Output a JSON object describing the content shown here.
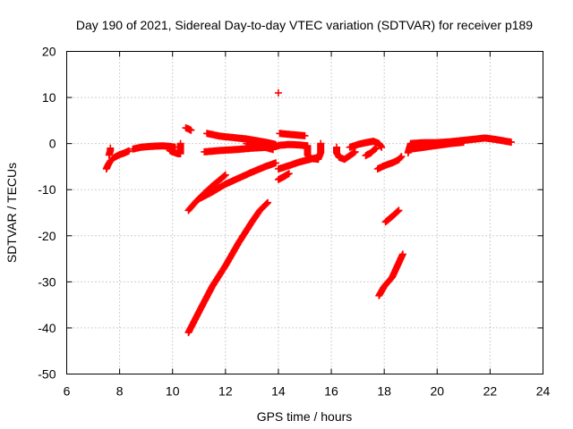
{
  "chart_data": {
    "type": "scatter",
    "title": "Day 190 of 2021, Sidereal Day-to-day VTEC variation (SDTVAR) for receiver p189",
    "xlabel": "GPS time / hours",
    "ylabel": "SDTVAR / TECUs",
    "xlim": [
      6,
      24
    ],
    "ylim": [
      -50,
      20
    ],
    "xticks": [
      "6",
      "8",
      "10",
      "12",
      "14",
      "16",
      "18",
      "20",
      "22",
      "24"
    ],
    "yticks": [
      "20",
      "10",
      "0",
      "-10",
      "-20",
      "-30",
      "-40",
      "-50"
    ],
    "grid": true,
    "marker": "plus",
    "series_color": "#ff0000",
    "series": [
      {
        "name": "track-1",
        "points": [
          [
            7.5,
            -5.5
          ],
          [
            7.55,
            -4.8
          ],
          [
            7.65,
            -3.8
          ],
          [
            7.8,
            -3.0
          ],
          [
            8.0,
            -2.4
          ],
          [
            8.2,
            -2.0
          ],
          [
            8.35,
            -1.6
          ]
        ]
      },
      {
        "name": "track-2",
        "points": [
          [
            7.6,
            -2.5
          ],
          [
            7.65,
            -1.5
          ],
          [
            7.65,
            -1.0
          ]
        ]
      },
      {
        "name": "track-3",
        "points": [
          [
            8.5,
            -1.2
          ],
          [
            8.8,
            -0.8
          ],
          [
            9.2,
            -0.6
          ],
          [
            9.6,
            -0.5
          ],
          [
            9.9,
            -0.6
          ],
          [
            10.1,
            -0.8
          ]
        ]
      },
      {
        "name": "track-4",
        "points": [
          [
            9.9,
            -1.5
          ],
          [
            10.0,
            -1.8
          ],
          [
            10.1,
            -2.0
          ],
          [
            10.2,
            -2.2
          ],
          [
            10.3,
            -2.2
          ],
          [
            10.3,
            -1.0
          ],
          [
            10.3,
            0.0
          ]
        ]
      },
      {
        "name": "track-5",
        "points": [
          [
            10.5,
            3.4
          ],
          [
            10.6,
            3.2
          ],
          [
            10.7,
            2.9
          ]
        ]
      },
      {
        "name": "track-6",
        "points": [
          [
            10.6,
            -14.5
          ],
          [
            10.9,
            -12.5
          ],
          [
            11.2,
            -10.8
          ],
          [
            11.5,
            -9.2
          ],
          [
            11.8,
            -7.8
          ],
          [
            12.0,
            -6.8
          ]
        ]
      },
      {
        "name": "track-7",
        "points": [
          [
            11.0,
            -12.0
          ],
          [
            11.5,
            -10.5
          ],
          [
            12.0,
            -8.8
          ],
          [
            12.5,
            -7.5
          ],
          [
            13.0,
            -6.2
          ],
          [
            13.5,
            -5.0
          ],
          [
            13.9,
            -4.2
          ]
        ]
      },
      {
        "name": "track-8",
        "points": [
          [
            10.6,
            -41.0
          ],
          [
            11.0,
            -36.5
          ],
          [
            11.5,
            -31.0
          ],
          [
            12.0,
            -26.5
          ],
          [
            12.5,
            -21.5
          ],
          [
            13.0,
            -17.0
          ],
          [
            13.3,
            -14.5
          ],
          [
            13.6,
            -12.8
          ]
        ]
      },
      {
        "name": "track-9",
        "points": [
          [
            11.3,
            2.2
          ],
          [
            11.8,
            1.6
          ],
          [
            12.3,
            1.3
          ],
          [
            12.8,
            1.0
          ],
          [
            13.2,
            0.6
          ],
          [
            13.6,
            0.2
          ],
          [
            13.9,
            -0.2
          ]
        ]
      },
      {
        "name": "track-10",
        "points": [
          [
            11.2,
            -1.8
          ],
          [
            11.8,
            -1.5
          ],
          [
            12.4,
            -1.3
          ],
          [
            13.0,
            -1.0
          ],
          [
            13.6,
            -0.8
          ],
          [
            14.0,
            -0.5
          ]
        ]
      },
      {
        "name": "track-11",
        "points": [
          [
            12.8,
            0.0
          ],
          [
            13.2,
            -0.4
          ],
          [
            13.5,
            -0.8
          ],
          [
            13.8,
            -1.3
          ]
        ]
      },
      {
        "name": "track-12",
        "points": [
          [
            14.0,
            11.0
          ]
        ]
      },
      {
        "name": "track-13",
        "points": [
          [
            14.05,
            2.2
          ],
          [
            14.4,
            2.0
          ],
          [
            14.8,
            1.8
          ],
          [
            15.0,
            1.7
          ]
        ]
      },
      {
        "name": "track-14",
        "points": [
          [
            14.0,
            -0.4
          ],
          [
            14.4,
            -0.2
          ],
          [
            14.8,
            -0.3
          ],
          [
            15.1,
            -0.5
          ]
        ]
      },
      {
        "name": "track-15",
        "points": [
          [
            14.0,
            -5.5
          ],
          [
            14.4,
            -4.8
          ],
          [
            14.8,
            -4.0
          ],
          [
            15.2,
            -3.4
          ],
          [
            15.5,
            -3.0
          ]
        ]
      },
      {
        "name": "track-16",
        "points": [
          [
            14.0,
            -7.8
          ],
          [
            14.2,
            -7.2
          ],
          [
            14.4,
            -6.5
          ]
        ]
      },
      {
        "name": "track-17",
        "points": [
          [
            15.1,
            -0.5
          ],
          [
            15.1,
            -1.5
          ],
          [
            15.1,
            -2.5
          ],
          [
            15.2,
            -3.2
          ],
          [
            15.5,
            -3.4
          ],
          [
            15.6,
            -2.0
          ],
          [
            15.6,
            -0.5
          ],
          [
            15.6,
            0.0
          ]
        ]
      },
      {
        "name": "track-18",
        "points": [
          [
            16.2,
            -0.8
          ],
          [
            16.2,
            -2.0
          ],
          [
            16.3,
            -3.0
          ],
          [
            16.5,
            -3.4
          ],
          [
            16.7,
            -2.6
          ],
          [
            16.9,
            -1.8
          ]
        ]
      },
      {
        "name": "track-19",
        "points": [
          [
            16.7,
            -0.8
          ],
          [
            17.0,
            -0.2
          ],
          [
            17.3,
            0.2
          ],
          [
            17.6,
            0.5
          ],
          [
            17.8,
            0.0
          ],
          [
            17.9,
            -0.8
          ]
        ]
      },
      {
        "name": "track-20",
        "points": [
          [
            17.3,
            -2.6
          ],
          [
            17.5,
            -2.0
          ],
          [
            17.6,
            -1.4
          ],
          [
            17.7,
            -1.0
          ]
        ]
      },
      {
        "name": "track-21",
        "points": [
          [
            17.75,
            -5.5
          ],
          [
            18.0,
            -4.8
          ],
          [
            18.3,
            -4.2
          ],
          [
            18.55,
            -3.5
          ],
          [
            18.65,
            -2.8
          ]
        ]
      },
      {
        "name": "track-22",
        "points": [
          [
            18.05,
            -17.0
          ],
          [
            18.3,
            -15.8
          ],
          [
            18.55,
            -14.5
          ]
        ]
      },
      {
        "name": "track-23",
        "points": [
          [
            17.8,
            -33.0
          ],
          [
            18.0,
            -31.0
          ],
          [
            18.3,
            -29.0
          ],
          [
            18.5,
            -26.5
          ],
          [
            18.7,
            -24.0
          ]
        ]
      },
      {
        "name": "track-24",
        "points": [
          [
            18.9,
            -2.0
          ],
          [
            18.95,
            -1.0
          ],
          [
            19.0,
            0.0
          ],
          [
            19.5,
            0.2
          ],
          [
            20.0,
            0.2
          ],
          [
            20.5,
            0.4
          ],
          [
            21.0,
            0.7
          ],
          [
            21.5,
            1.0
          ],
          [
            21.8,
            1.2
          ],
          [
            22.2,
            0.9
          ],
          [
            22.6,
            0.5
          ],
          [
            22.8,
            0.3
          ]
        ]
      },
      {
        "name": "track-25",
        "points": [
          [
            19.0,
            -1.2
          ],
          [
            19.5,
            -0.8
          ],
          [
            20.0,
            -0.4
          ],
          [
            20.5,
            0.0
          ],
          [
            21.0,
            0.3
          ]
        ]
      }
    ]
  }
}
